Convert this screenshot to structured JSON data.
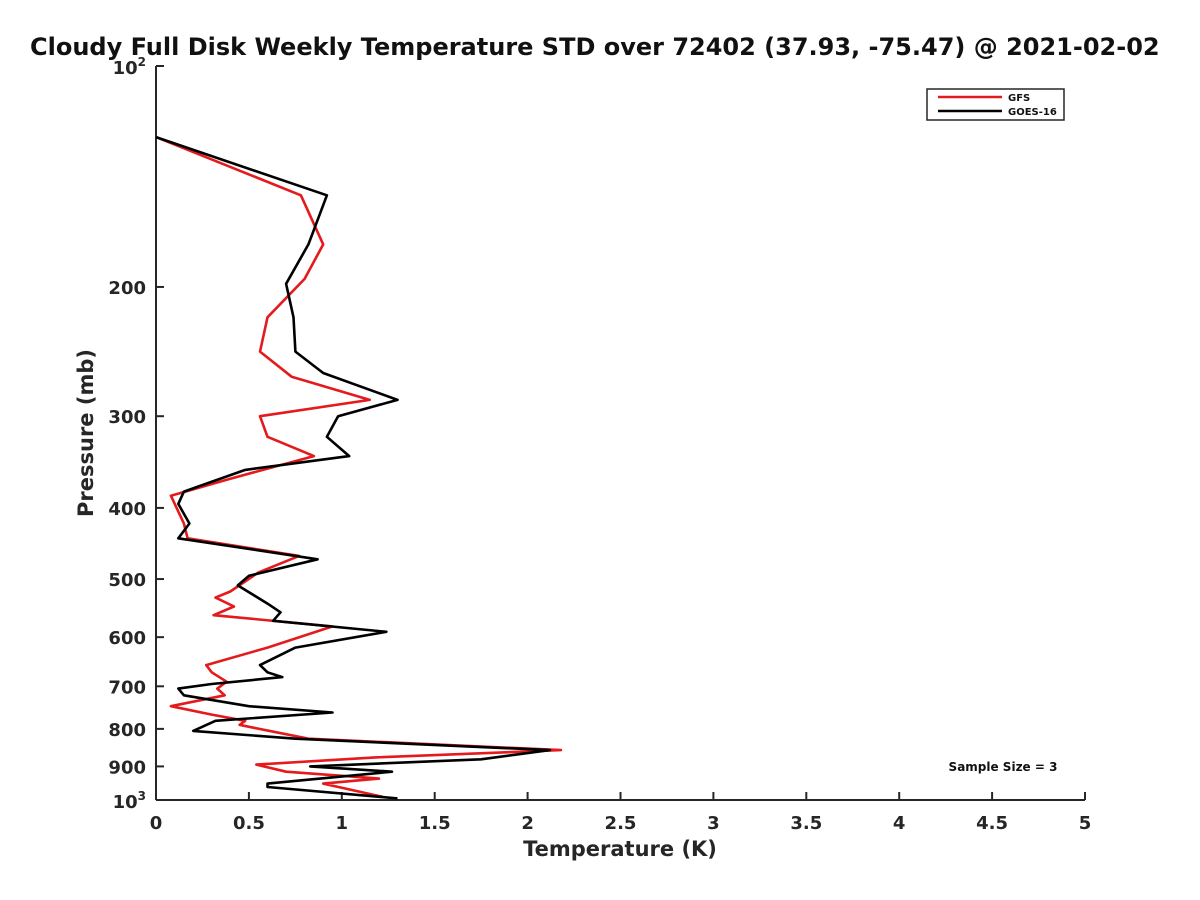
{
  "chart_data": {
    "type": "line",
    "title": "Cloudy Full Disk Weekly Temperature STD over 72402 (37.93, -75.47) @ 2021-02-02",
    "xlabel": "Temperature (K)",
    "ylabel": "Pressure (mb)",
    "xlim": [
      0,
      5
    ],
    "ylim": [
      100,
      1000
    ],
    "y_scale": "log",
    "y_reversed": true,
    "x_ticks": [
      "0",
      "0.5",
      "1",
      "1.5",
      "2",
      "2.5",
      "3",
      "3.5",
      "4",
      "4.5",
      "5"
    ],
    "y_ticks_plain": [
      "200",
      "300",
      "400",
      "500",
      "600",
      "700",
      "800",
      "900"
    ],
    "y_tick_top": {
      "base": "10",
      "exp": "2"
    },
    "y_tick_bottom": {
      "base": "10",
      "exp": "3"
    },
    "grid": false,
    "legend_position": "top-right",
    "annotation": "Sample Size = 3",
    "series": [
      {
        "name": "GFS",
        "color": "#e41a1c",
        "points": [
          [
            0.0,
            125
          ],
          [
            0.78,
            150
          ],
          [
            0.9,
            175
          ],
          [
            0.8,
            195
          ],
          [
            0.6,
            220
          ],
          [
            0.56,
            245
          ],
          [
            0.73,
            265
          ],
          [
            1.15,
            285
          ],
          [
            0.56,
            300
          ],
          [
            0.6,
            320
          ],
          [
            0.85,
            340
          ],
          [
            0.4,
            365
          ],
          [
            0.08,
            385
          ],
          [
            0.15,
            420
          ],
          [
            0.17,
            440
          ],
          [
            0.77,
            465
          ],
          [
            0.55,
            490
          ],
          [
            0.4,
            520
          ],
          [
            0.32,
            530
          ],
          [
            0.42,
            545
          ],
          [
            0.31,
            560
          ],
          [
            0.95,
            580
          ],
          [
            0.6,
            620
          ],
          [
            0.27,
            655
          ],
          [
            0.3,
            670
          ],
          [
            0.38,
            690
          ],
          [
            0.33,
            705
          ],
          [
            0.37,
            720
          ],
          [
            0.08,
            745
          ],
          [
            0.3,
            765
          ],
          [
            0.48,
            780
          ],
          [
            0.45,
            790
          ],
          [
            0.82,
            825
          ],
          [
            2.18,
            855
          ],
          [
            1.18,
            875
          ],
          [
            0.54,
            895
          ],
          [
            0.7,
            915
          ],
          [
            1.2,
            935
          ],
          [
            0.9,
            950
          ],
          [
            1.22,
            990
          ]
        ]
      },
      {
        "name": "GOES-16",
        "color": "#000000",
        "points": [
          [
            0.0,
            125
          ],
          [
            0.92,
            150
          ],
          [
            0.82,
            175
          ],
          [
            0.7,
            198
          ],
          [
            0.74,
            220
          ],
          [
            0.75,
            245
          ],
          [
            0.9,
            262
          ],
          [
            1.3,
            285
          ],
          [
            0.98,
            300
          ],
          [
            0.92,
            320
          ],
          [
            1.04,
            340
          ],
          [
            0.48,
            355
          ],
          [
            0.15,
            380
          ],
          [
            0.12,
            395
          ],
          [
            0.18,
            420
          ],
          [
            0.12,
            440
          ],
          [
            0.87,
            470
          ],
          [
            0.5,
            495
          ],
          [
            0.44,
            510
          ],
          [
            0.6,
            540
          ],
          [
            0.67,
            555
          ],
          [
            0.63,
            570
          ],
          [
            1.24,
            590
          ],
          [
            0.75,
            620
          ],
          [
            0.56,
            655
          ],
          [
            0.6,
            670
          ],
          [
            0.68,
            680
          ],
          [
            0.3,
            695
          ],
          [
            0.12,
            705
          ],
          [
            0.15,
            720
          ],
          [
            0.5,
            745
          ],
          [
            0.95,
            760
          ],
          [
            0.32,
            780
          ],
          [
            0.2,
            805
          ],
          [
            0.75,
            825
          ],
          [
            2.12,
            855
          ],
          [
            1.75,
            880
          ],
          [
            0.83,
            900
          ],
          [
            1.27,
            915
          ],
          [
            0.6,
            950
          ],
          [
            0.6,
            960
          ],
          [
            1.3,
            995
          ]
        ]
      }
    ]
  }
}
